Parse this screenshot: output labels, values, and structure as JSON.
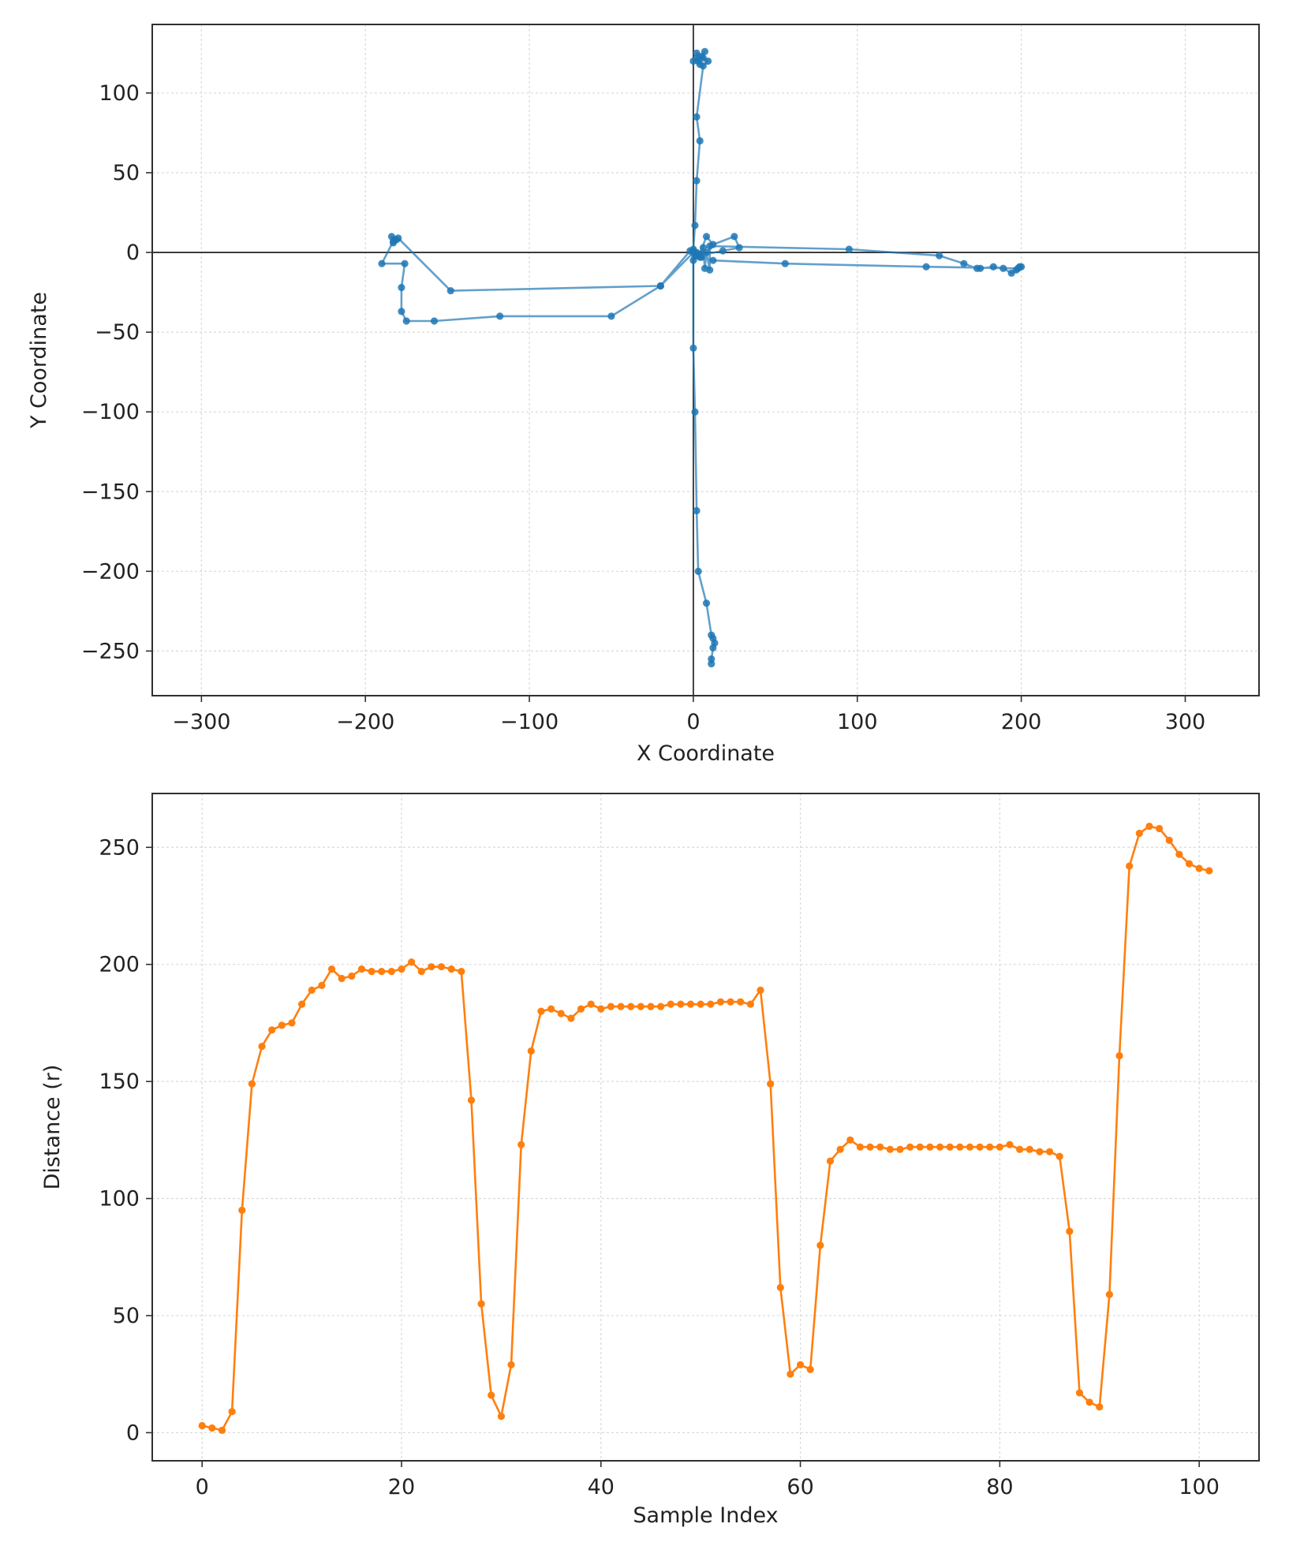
{
  "chart_data": [
    {
      "type": "line",
      "marker": "circle",
      "xlabel": "X Coordinate",
      "ylabel": "Y Coordinate",
      "xlim": [
        -330,
        345
      ],
      "ylim": [
        -278,
        143
      ],
      "xticks": [
        -300,
        -200,
        -100,
        0,
        100,
        200,
        300
      ],
      "yticks": [
        100,
        50,
        0,
        -50,
        -100,
        -150,
        -200,
        -250
      ],
      "grid": true,
      "zero_lines": true,
      "legend": "none",
      "colors": {
        "line": "#1f77b4"
      },
      "series": [
        {
          "x": [
            0,
            2,
            4,
            2,
            5,
            7,
            3,
            6,
            9,
            6,
            2,
            4,
            2,
            1,
            0,
            2,
            4,
            8,
            12,
            25,
            28,
            18,
            3,
            0,
            -2,
            -20,
            -50,
            -118,
            -158,
            -175,
            -178,
            -178,
            -176,
            -190,
            -183,
            -182,
            -184,
            -181,
            -183,
            -180,
            -148,
            -20,
            0,
            2,
            4,
            6,
            7,
            8,
            10,
            10,
            95,
            150,
            165,
            173,
            175,
            183,
            189,
            194,
            197,
            199,
            200,
            198,
            142,
            56,
            12,
            5,
            2,
            0,
            0,
            1,
            2,
            3,
            8,
            11,
            12,
            13,
            12,
            11,
            11
          ],
          "y": [
            120,
            122,
            118,
            125,
            123,
            126,
            120,
            122,
            120,
            117,
            85,
            70,
            45,
            17,
            2,
            0,
            -1,
            10,
            5,
            10,
            3,
            1,
            -2,
            -5,
            1,
            -21,
            -40,
            -40,
            -43,
            -43,
            -37,
            -22,
            -7,
            -7,
            7,
            8,
            10,
            8,
            6,
            9,
            -24,
            -21,
            0,
            -2,
            -3,
            3,
            -10,
            0,
            -11,
            4,
            2,
            -2,
            -7,
            -10,
            -10,
            -9,
            -10,
            -13,
            -11,
            -9,
            -9,
            -10,
            -9,
            -7,
            -5,
            -3,
            -1,
            1,
            -60,
            -100,
            -162,
            -200,
            -220,
            -240,
            -242,
            -245,
            -248,
            -255,
            -258
          ]
        }
      ]
    },
    {
      "type": "line",
      "marker": "circle",
      "xlabel": "Sample Index",
      "ylabel": "Distance (r)",
      "xlim": [
        -5,
        106
      ],
      "ylim": [
        -12,
        273
      ],
      "xticks": [
        0,
        20,
        40,
        60,
        80,
        100
      ],
      "yticks": [
        250,
        200,
        150,
        100,
        50,
        0
      ],
      "grid": true,
      "legend": "none",
      "colors": {
        "line": "#ff7f0e"
      },
      "series": [
        {
          "x": [
            0,
            1,
            2,
            3,
            4,
            5,
            6,
            7,
            8,
            9,
            10,
            11,
            12,
            13,
            14,
            15,
            16,
            17,
            18,
            19,
            20,
            21,
            22,
            23,
            24,
            25,
            26,
            27,
            28,
            29,
            30,
            31,
            32,
            33,
            34,
            35,
            36,
            37,
            38,
            39,
            40,
            41,
            42,
            43,
            44,
            45,
            46,
            47,
            48,
            49,
            50,
            51,
            52,
            53,
            54,
            55,
            56,
            57,
            58,
            59,
            60,
            61,
            62,
            63,
            64,
            65,
            66,
            67,
            68,
            69,
            70,
            71,
            72,
            73,
            74,
            75,
            76,
            77,
            78,
            79,
            80,
            81,
            82,
            83,
            84,
            85,
            86,
            87,
            88,
            89,
            90,
            91,
            92,
            93,
            94,
            95,
            96,
            97,
            98,
            99,
            100,
            101
          ],
          "y": [
            3,
            2,
            1,
            9,
            95,
            149,
            165,
            172,
            174,
            175,
            183,
            189,
            191,
            198,
            194,
            195,
            198,
            197,
            197,
            197,
            198,
            201,
            197,
            199,
            199,
            198,
            197,
            142,
            55,
            16,
            7,
            29,
            123,
            163,
            180,
            181,
            179,
            177,
            181,
            183,
            181,
            182,
            182,
            182,
            182,
            182,
            182,
            183,
            183,
            183,
            183,
            183,
            184,
            184,
            184,
            183,
            189,
            149,
            62,
            25,
            29,
            27,
            80,
            116,
            121,
            125,
            122,
            122,
            122,
            121,
            121,
            122,
            122,
            122,
            122,
            122,
            122,
            122,
            122,
            122,
            122,
            123,
            121,
            121,
            120,
            120,
            118,
            86,
            17,
            13,
            11,
            59,
            161,
            242,
            256,
            259,
            258,
            253,
            247,
            243,
            241,
            240
          ]
        }
      ]
    }
  ]
}
